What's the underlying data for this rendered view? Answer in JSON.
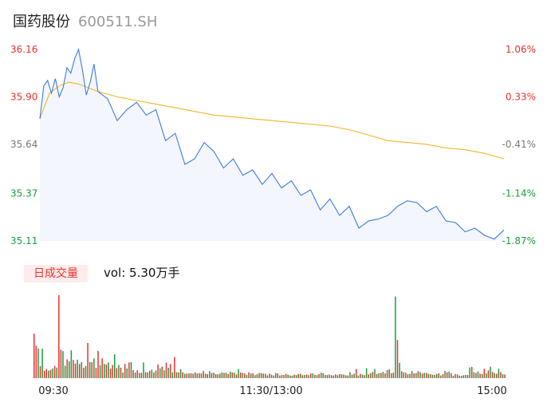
{
  "header": {
    "name": "国药股份",
    "code": "600511.SH"
  },
  "volume_legend": {
    "badge": "日成交量",
    "label": "vol: 5.30万手"
  },
  "colors": {
    "price": "#3f7be0",
    "avg": "#f2b62a",
    "up": "#e8312f",
    "down": "#1a9d3c",
    "neutral": "#777777"
  },
  "chart_data": [
    {
      "type": "line",
      "y_ticks": [
        "36.16",
        "35.90",
        "35.64",
        "35.37",
        "35.11"
      ],
      "y_tick_values": [
        36.16,
        35.9,
        35.64,
        35.37,
        35.11
      ],
      "pct_ticks": [
        "1.06%",
        "0.33%",
        "-0.41%",
        "-1.14%",
        "-1.87%"
      ],
      "ylim": [
        35.11,
        36.16
      ],
      "x_ticks": [
        "09:30",
        "11:30/13:00",
        "15:00"
      ],
      "series": [
        {
          "name": "",
          "x": [
            0,
            2,
            4,
            6,
            8,
            10,
            12,
            14,
            16,
            18,
            20,
            22,
            24,
            26,
            28,
            30,
            35,
            40,
            45,
            50,
            55,
            60,
            65,
            70,
            75,
            80,
            85,
            90,
            95,
            100,
            105,
            110,
            115,
            120,
            125,
            130,
            135,
            140,
            145,
            150,
            155,
            160,
            165,
            170,
            175,
            180,
            185,
            190,
            195,
            200,
            205,
            210,
            215,
            220,
            225,
            230,
            235,
            240
          ],
          "values": [
            35.78,
            35.96,
            35.99,
            35.92,
            36.0,
            35.9,
            35.95,
            36.06,
            36.03,
            36.11,
            36.16,
            36.05,
            35.91,
            35.98,
            36.08,
            35.93,
            35.89,
            35.77,
            35.83,
            35.87,
            35.8,
            35.83,
            35.66,
            35.7,
            35.53,
            35.56,
            35.65,
            35.6,
            35.51,
            35.56,
            35.47,
            35.5,
            35.42,
            35.48,
            35.4,
            35.44,
            35.36,
            35.39,
            35.28,
            35.34,
            35.25,
            35.3,
            35.18,
            35.22,
            35.23,
            35.25,
            35.3,
            35.33,
            35.32,
            35.27,
            35.3,
            35.22,
            35.21,
            35.16,
            35.18,
            35.14,
            35.12,
            35.17
          ]
        },
        {
          "name": "",
          "x": [
            0,
            5,
            10,
            15,
            20,
            25,
            30,
            40,
            50,
            60,
            70,
            80,
            90,
            100,
            110,
            120,
            130,
            140,
            150,
            160,
            170,
            180,
            190,
            200,
            210,
            220,
            230,
            240
          ],
          "values": [
            35.78,
            35.92,
            35.96,
            35.98,
            35.97,
            35.95,
            35.93,
            35.9,
            35.88,
            35.86,
            35.84,
            35.82,
            35.8,
            35.79,
            35.78,
            35.77,
            35.76,
            35.75,
            35.74,
            35.72,
            35.69,
            35.66,
            35.65,
            35.64,
            35.62,
            35.61,
            35.59,
            35.56
          ]
        }
      ]
    },
    {
      "type": "bar",
      "name": "",
      "values": [
        1630,
        1185,
        1090,
        440,
        1080,
        270,
        335,
        272,
        306,
        362,
        450,
        388,
        3050,
        1040,
        990,
        455,
        690,
        620,
        1020,
        665,
        540,
        675,
        520,
        595,
        375,
        448,
        1290,
        595,
        585,
        720,
        375,
        1000,
        480,
        725,
        525,
        500,
        575,
        350,
        480,
        875,
        368,
        480,
        385,
        205,
        520,
        358,
        575,
        590,
        295,
        205,
        290,
        192,
        195,
        575,
        218,
        210,
        268,
        308,
        208,
        282,
        500,
        360,
        420,
        288,
        570,
        380,
        520,
        210,
        775,
        218,
        210,
        325,
        218,
        160,
        168,
        172,
        180,
        165,
        210,
        170,
        185,
        172,
        260,
        165,
        150,
        255,
        188,
        198,
        150,
        145,
        165,
        212,
        190,
        200,
        150,
        238,
        210,
        195,
        135,
        330,
        205,
        190,
        175,
        120,
        215,
        168,
        180,
        110,
        140,
        190,
        185,
        168,
        160,
        102,
        162,
        128,
        98,
        188,
        172,
        95,
        118,
        116,
        155,
        125,
        98,
        90,
        130,
        112,
        150,
        163,
        112,
        118,
        132,
        110,
        163,
        175,
        120,
        112,
        150,
        198,
        185,
        118,
        110,
        132,
        108,
        98,
        138,
        112,
        150,
        140,
        128,
        105,
        96,
        220,
        128,
        162,
        335,
        98,
        155,
        130,
        108,
        360,
        142,
        185,
        232,
        330,
        152,
        178,
        190,
        230,
        170,
        295,
        320,
        175,
        200,
        3000,
        1400,
        560,
        252,
        215,
        198,
        140,
        162,
        260,
        175,
        182,
        255,
        215,
        170,
        195,
        192,
        158,
        148,
        122,
        118,
        155,
        178,
        98,
        145,
        260,
        215,
        240,
        182,
        88,
        145,
        135,
        95,
        85,
        105,
        120,
        115,
        390,
        410,
        220,
        190,
        245,
        165,
        150,
        340,
        175,
        290,
        420,
        230,
        185,
        160,
        340,
        220,
        145,
        132
      ],
      "colors": [
        "up",
        "up",
        "down",
        "up",
        "down",
        "up",
        "up",
        "down",
        "up",
        "down",
        "up",
        "down",
        "up",
        "up",
        "down",
        "down",
        "up",
        "down",
        "down",
        "up",
        "up",
        "down",
        "up",
        "down",
        "up",
        "down",
        "up",
        "down",
        "up",
        "down",
        "up",
        "up",
        "down",
        "up",
        "down",
        "up",
        "down",
        "up",
        "up",
        "down",
        "up",
        "down",
        "up",
        "down",
        "up",
        "down",
        "up",
        "down",
        "up",
        "down",
        "up",
        "down",
        "up",
        "down",
        "up",
        "down",
        "up",
        "down",
        "up",
        "down",
        "up",
        "down",
        "up",
        "down",
        "up",
        "down",
        "up",
        "down",
        "up",
        "down",
        "up",
        "down",
        "up",
        "down",
        "up",
        "down",
        "up",
        "down",
        "up",
        "down",
        "up",
        "down",
        "up",
        "down",
        "up",
        "down",
        "up",
        "down",
        "up",
        "down",
        "up",
        "down",
        "up",
        "down",
        "up",
        "down",
        "up",
        "down",
        "up",
        "down",
        "up",
        "down",
        "up",
        "down",
        "up",
        "down",
        "up",
        "down",
        "up",
        "down",
        "up",
        "down",
        "up",
        "down",
        "up",
        "down",
        "up",
        "down",
        "up",
        "down",
        "up",
        "down",
        "up",
        "down",
        "up",
        "down",
        "up",
        "down",
        "up",
        "down",
        "up",
        "down",
        "up",
        "down",
        "up",
        "down",
        "up",
        "down",
        "up",
        "down",
        "up",
        "down",
        "up",
        "down",
        "up",
        "down",
        "up",
        "down",
        "up",
        "down",
        "up",
        "down",
        "up",
        "down",
        "up",
        "down",
        "up",
        "down",
        "up",
        "down",
        "up",
        "down",
        "up",
        "down",
        "up",
        "down",
        "up",
        "down",
        "up",
        "down",
        "up",
        "down",
        "up",
        "down",
        "up",
        "down",
        "up",
        "down",
        "up",
        "down",
        "up",
        "down",
        "up",
        "down",
        "up",
        "down",
        "up",
        "down",
        "up",
        "down",
        "up",
        "down",
        "up",
        "down",
        "up",
        "down",
        "up",
        "down",
        "up",
        "down",
        "up",
        "down",
        "up",
        "down",
        "up",
        "down",
        "up",
        "down",
        "up",
        "down",
        "up",
        "down",
        "up",
        "down",
        "up",
        "down",
        "up",
        "down",
        "up",
        "down",
        "up",
        "down",
        "up",
        "down",
        "up",
        "down",
        "up",
        "down",
        "up",
        "down",
        "up",
        "down",
        "up",
        "down",
        "up",
        "down",
        "up",
        "down",
        "up",
        "down",
        "up",
        "down",
        "neutral"
      ],
      "ylim": [
        0,
        3050
      ]
    }
  ]
}
